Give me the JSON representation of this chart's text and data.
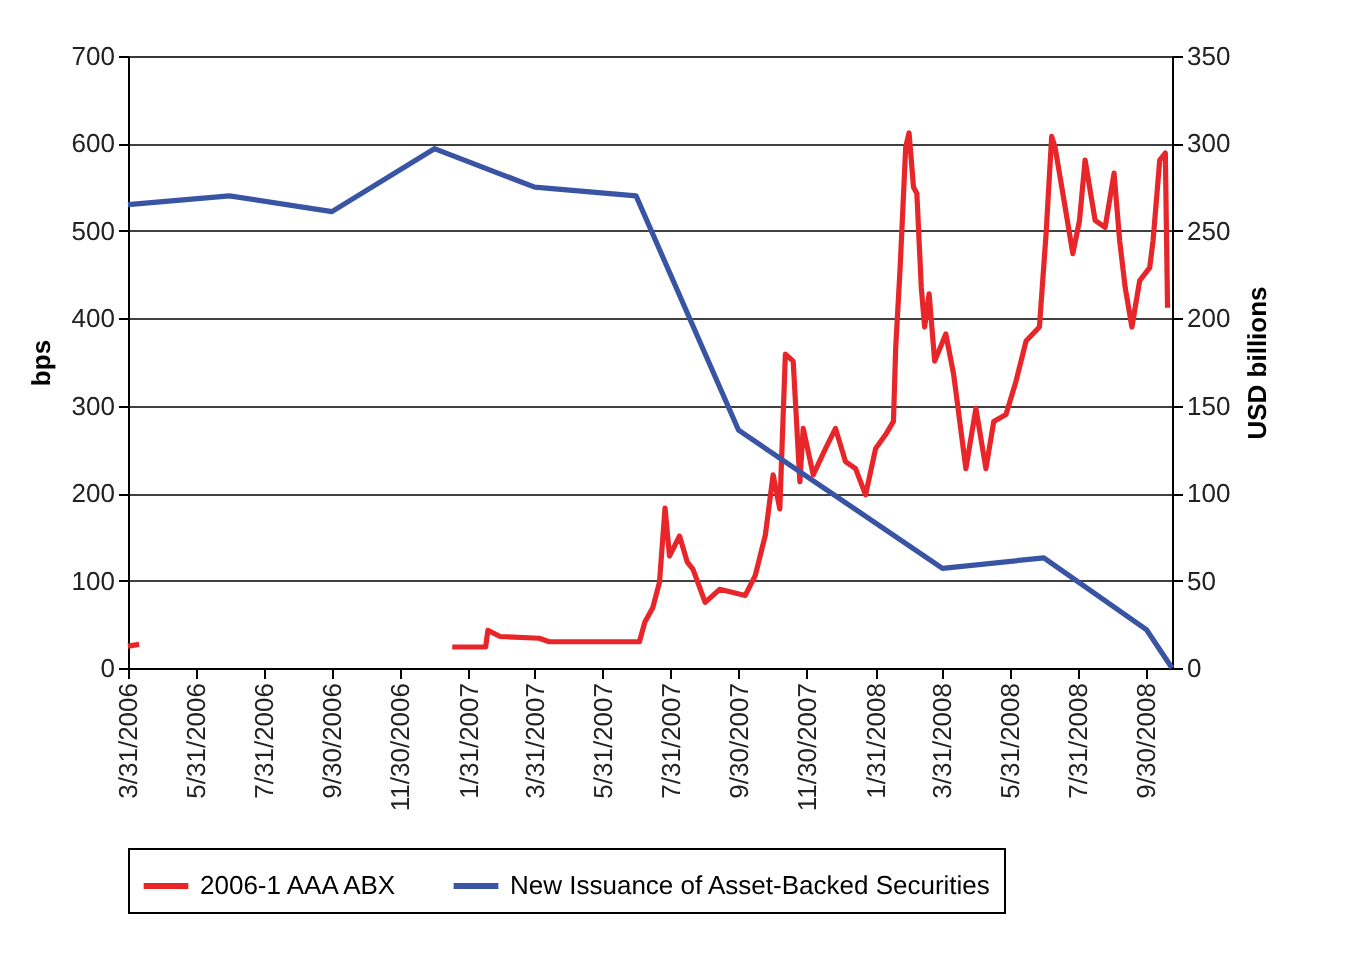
{
  "chart_data": {
    "type": "line",
    "ylabel": "bps",
    "y2label": "USD billions",
    "xlim": [
      "2006-03-31",
      "2008-10-23"
    ],
    "xticks": [
      {
        "value": "2006-03-31",
        "label": "3/31/2006"
      },
      {
        "value": "2006-05-31",
        "label": "5/31/2006"
      },
      {
        "value": "2006-07-31",
        "label": "7/31/2006"
      },
      {
        "value": "2006-09-30",
        "label": "9/30/2006"
      },
      {
        "value": "2006-11-30",
        "label": "11/30/2006"
      },
      {
        "value": "2007-01-31",
        "label": "1/31/2007"
      },
      {
        "value": "2007-03-31",
        "label": "3/31/2007"
      },
      {
        "value": "2007-05-31",
        "label": "5/31/2007"
      },
      {
        "value": "2007-07-31",
        "label": "7/31/2007"
      },
      {
        "value": "2007-09-30",
        "label": "9/30/2007"
      },
      {
        "value": "2007-11-30",
        "label": "11/30/2007"
      },
      {
        "value": "2008-01-31",
        "label": "1/31/2008"
      },
      {
        "value": "2008-03-31",
        "label": "3/31/2008"
      },
      {
        "value": "2008-05-31",
        "label": "5/31/2008"
      },
      {
        "value": "2008-07-31",
        "label": "7/31/2008"
      },
      {
        "value": "2008-09-30",
        "label": "9/30/2008"
      }
    ],
    "ylim": [
      0,
      700
    ],
    "yticks": [
      0,
      100,
      200,
      300,
      400,
      500,
      600,
      700
    ],
    "y2lim": [
      0,
      350
    ],
    "y2ticks": [
      0,
      50,
      100,
      150,
      200,
      250,
      300,
      350
    ],
    "grid": "y",
    "legend": "bottom",
    "line_style": "solid",
    "marker": "none",
    "series": [
      {
        "name": "2006-1 AAA ABX",
        "color": "#e8262a",
        "x": [
          "2006-03-31",
          "2006-04-10",
          "2006-06-01",
          "2007-01-16",
          "2007-02-15",
          "2007-02-17",
          "2007-02-28",
          "2007-04-04",
          "2007-04-13",
          "2007-07-03",
          "2007-07-08",
          "2007-07-15",
          "2007-07-21",
          "2007-07-26",
          "2007-07-30",
          "2007-08-08",
          "2007-08-15",
          "2007-08-20",
          "2007-08-31",
          "2007-09-13",
          "2007-10-06",
          "2007-10-15",
          "2007-10-24",
          "2007-10-31",
          "2007-11-06",
          "2007-11-11",
          "2007-11-18",
          "2007-11-24",
          "2007-11-27",
          "2007-12-06",
          "2007-12-17",
          "2007-12-26",
          "2008-01-04",
          "2008-01-13",
          "2008-01-22",
          "2008-01-31",
          "2008-02-09",
          "2008-02-16",
          "2008-02-18",
          "2008-02-22",
          "2008-02-27",
          "2008-03-01",
          "2008-03-05",
          "2008-03-08",
          "2008-03-12",
          "2008-03-15",
          "2008-03-19",
          "2008-03-24",
          "2008-04-03",
          "2008-04-10",
          "2008-04-21",
          "2008-04-30",
          "2008-05-09",
          "2008-05-16",
          "2008-05-27",
          "2008-06-05",
          "2008-06-14",
          "2008-06-26",
          "2008-07-02",
          "2008-07-07",
          "2008-07-10",
          "2008-07-17",
          "2008-07-26",
          "2008-08-01",
          "2008-08-06",
          "2008-08-15",
          "2008-08-24",
          "2008-09-01",
          "2008-09-06",
          "2008-09-11",
          "2008-09-17",
          "2008-09-24",
          "2008-10-03",
          "2008-10-06",
          "2008-10-12",
          "2008-10-17",
          "2008-10-19"
        ],
        "values": [
          25,
          27,
          null,
          24,
          24,
          43,
          36,
          34,
          30,
          30,
          53,
          69,
          98,
          183,
          128,
          151,
          121,
          113,
          75,
          90,
          83,
          106,
          152,
          221,
          182,
          359,
          351,
          213,
          274,
          221,
          251,
          274,
          236,
          228,
          198,
          251,
          267,
          282,
          366,
          458,
          596,
          612,
          550,
          543,
          435,
          390,
          428,
          351,
          382,
          336,
          228,
          297,
          228,
          282,
          290,
          328,
          374,
          390,
          497,
          608,
          596,
          543,
          474,
          512,
          581,
          512,
          504,
          566,
          489,
          435,
          390,
          443,
          458,
          489,
          581,
          589,
          412
        ]
      },
      {
        "name": "New Issuance of Asset-Backed Securities",
        "color": "#3a54a4",
        "axis": "y2",
        "x": [
          "2006-03-31",
          "2006-06-30",
          "2006-09-30",
          "2006-12-31",
          "2007-03-31",
          "2007-06-30",
          "2007-09-30",
          "2008-03-31",
          "2008-06-30",
          "2008-09-30",
          "2008-10-23"
        ],
        "values": [
          265,
          270,
          261,
          297,
          275,
          270,
          136,
          57,
          63,
          22,
          0
        ]
      }
    ]
  }
}
